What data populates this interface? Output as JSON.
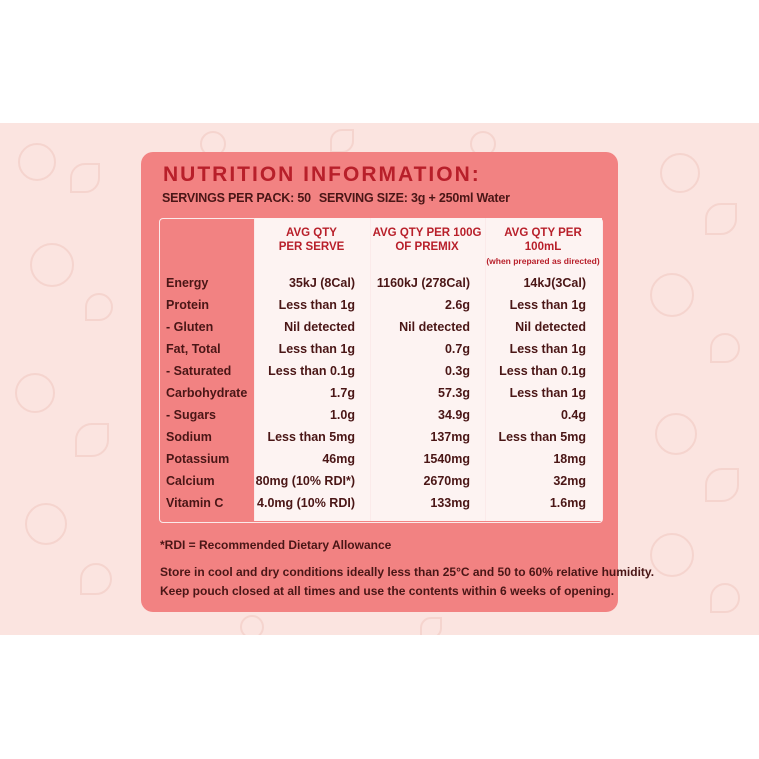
{
  "title": "NUTRITION INFORMATION:",
  "servings": {
    "per_pack": "SERVINGS PER PACK: 50",
    "serving_size": "SERVING SIZE: 3g + 250ml Water"
  },
  "columns": [
    {
      "line1": "AVG QTY",
      "line2": "PER SERVE",
      "note": ""
    },
    {
      "line1": "AVG QTY PER 100G",
      "line2": "OF PREMIX",
      "note": ""
    },
    {
      "line1": "AVG QTY PER 100mL",
      "line2": "",
      "note": "(when prepared as directed)"
    }
  ],
  "rows": [
    {
      "label": "Energy",
      "serve": "35kJ (8Cal)",
      "premix": "1160kJ (278Cal)",
      "ml": "14kJ(3Cal)"
    },
    {
      "label": "Protein",
      "serve": "Less than 1g",
      "premix": "2.6g",
      "ml": "Less than 1g"
    },
    {
      "label": "- Gluten",
      "serve": "Nil detected",
      "premix": "Nil detected",
      "ml": "Nil detected"
    },
    {
      "label": "Fat, Total",
      "serve": "Less than 1g",
      "premix": "0.7g",
      "ml": "Less than 1g"
    },
    {
      "label": "- Saturated",
      "serve": "Less than 0.1g",
      "premix": "0.3g",
      "ml": "Less than 0.1g"
    },
    {
      "label": "Carbohydrate",
      "serve": "1.7g",
      "premix": "57.3g",
      "ml": "Less than 1g"
    },
    {
      "label": "- Sugars",
      "serve": "1.0g",
      "premix": "34.9g",
      "ml": "0.4g"
    },
    {
      "label": "Sodium",
      "serve": "Less than 5mg",
      "premix": "137mg",
      "ml": "Less than 5mg"
    },
    {
      "label": "Potassium",
      "serve": "46mg",
      "premix": "1540mg",
      "ml": "18mg"
    },
    {
      "label": "Calcium",
      "serve": "80mg (10% RDI*)",
      "premix": "2670mg",
      "ml": "32mg"
    },
    {
      "label": "Vitamin C",
      "serve": "4.0mg (10% RDI)",
      "premix": "133mg",
      "ml": "1.6mg"
    }
  ],
  "footnote": "*RDI = Recommended Dietary Allowance",
  "storage": {
    "line1": "Store in cool and dry conditions ideally less than 25°C and 50 to 60% relative humidity.",
    "line2": "Keep pouch closed at all times and use the contents within 6 weeks of opening."
  },
  "colors": {
    "panel": "#f28282",
    "title": "#b81f2a",
    "text": "#4a1616",
    "background": "#fbe4e0"
  }
}
